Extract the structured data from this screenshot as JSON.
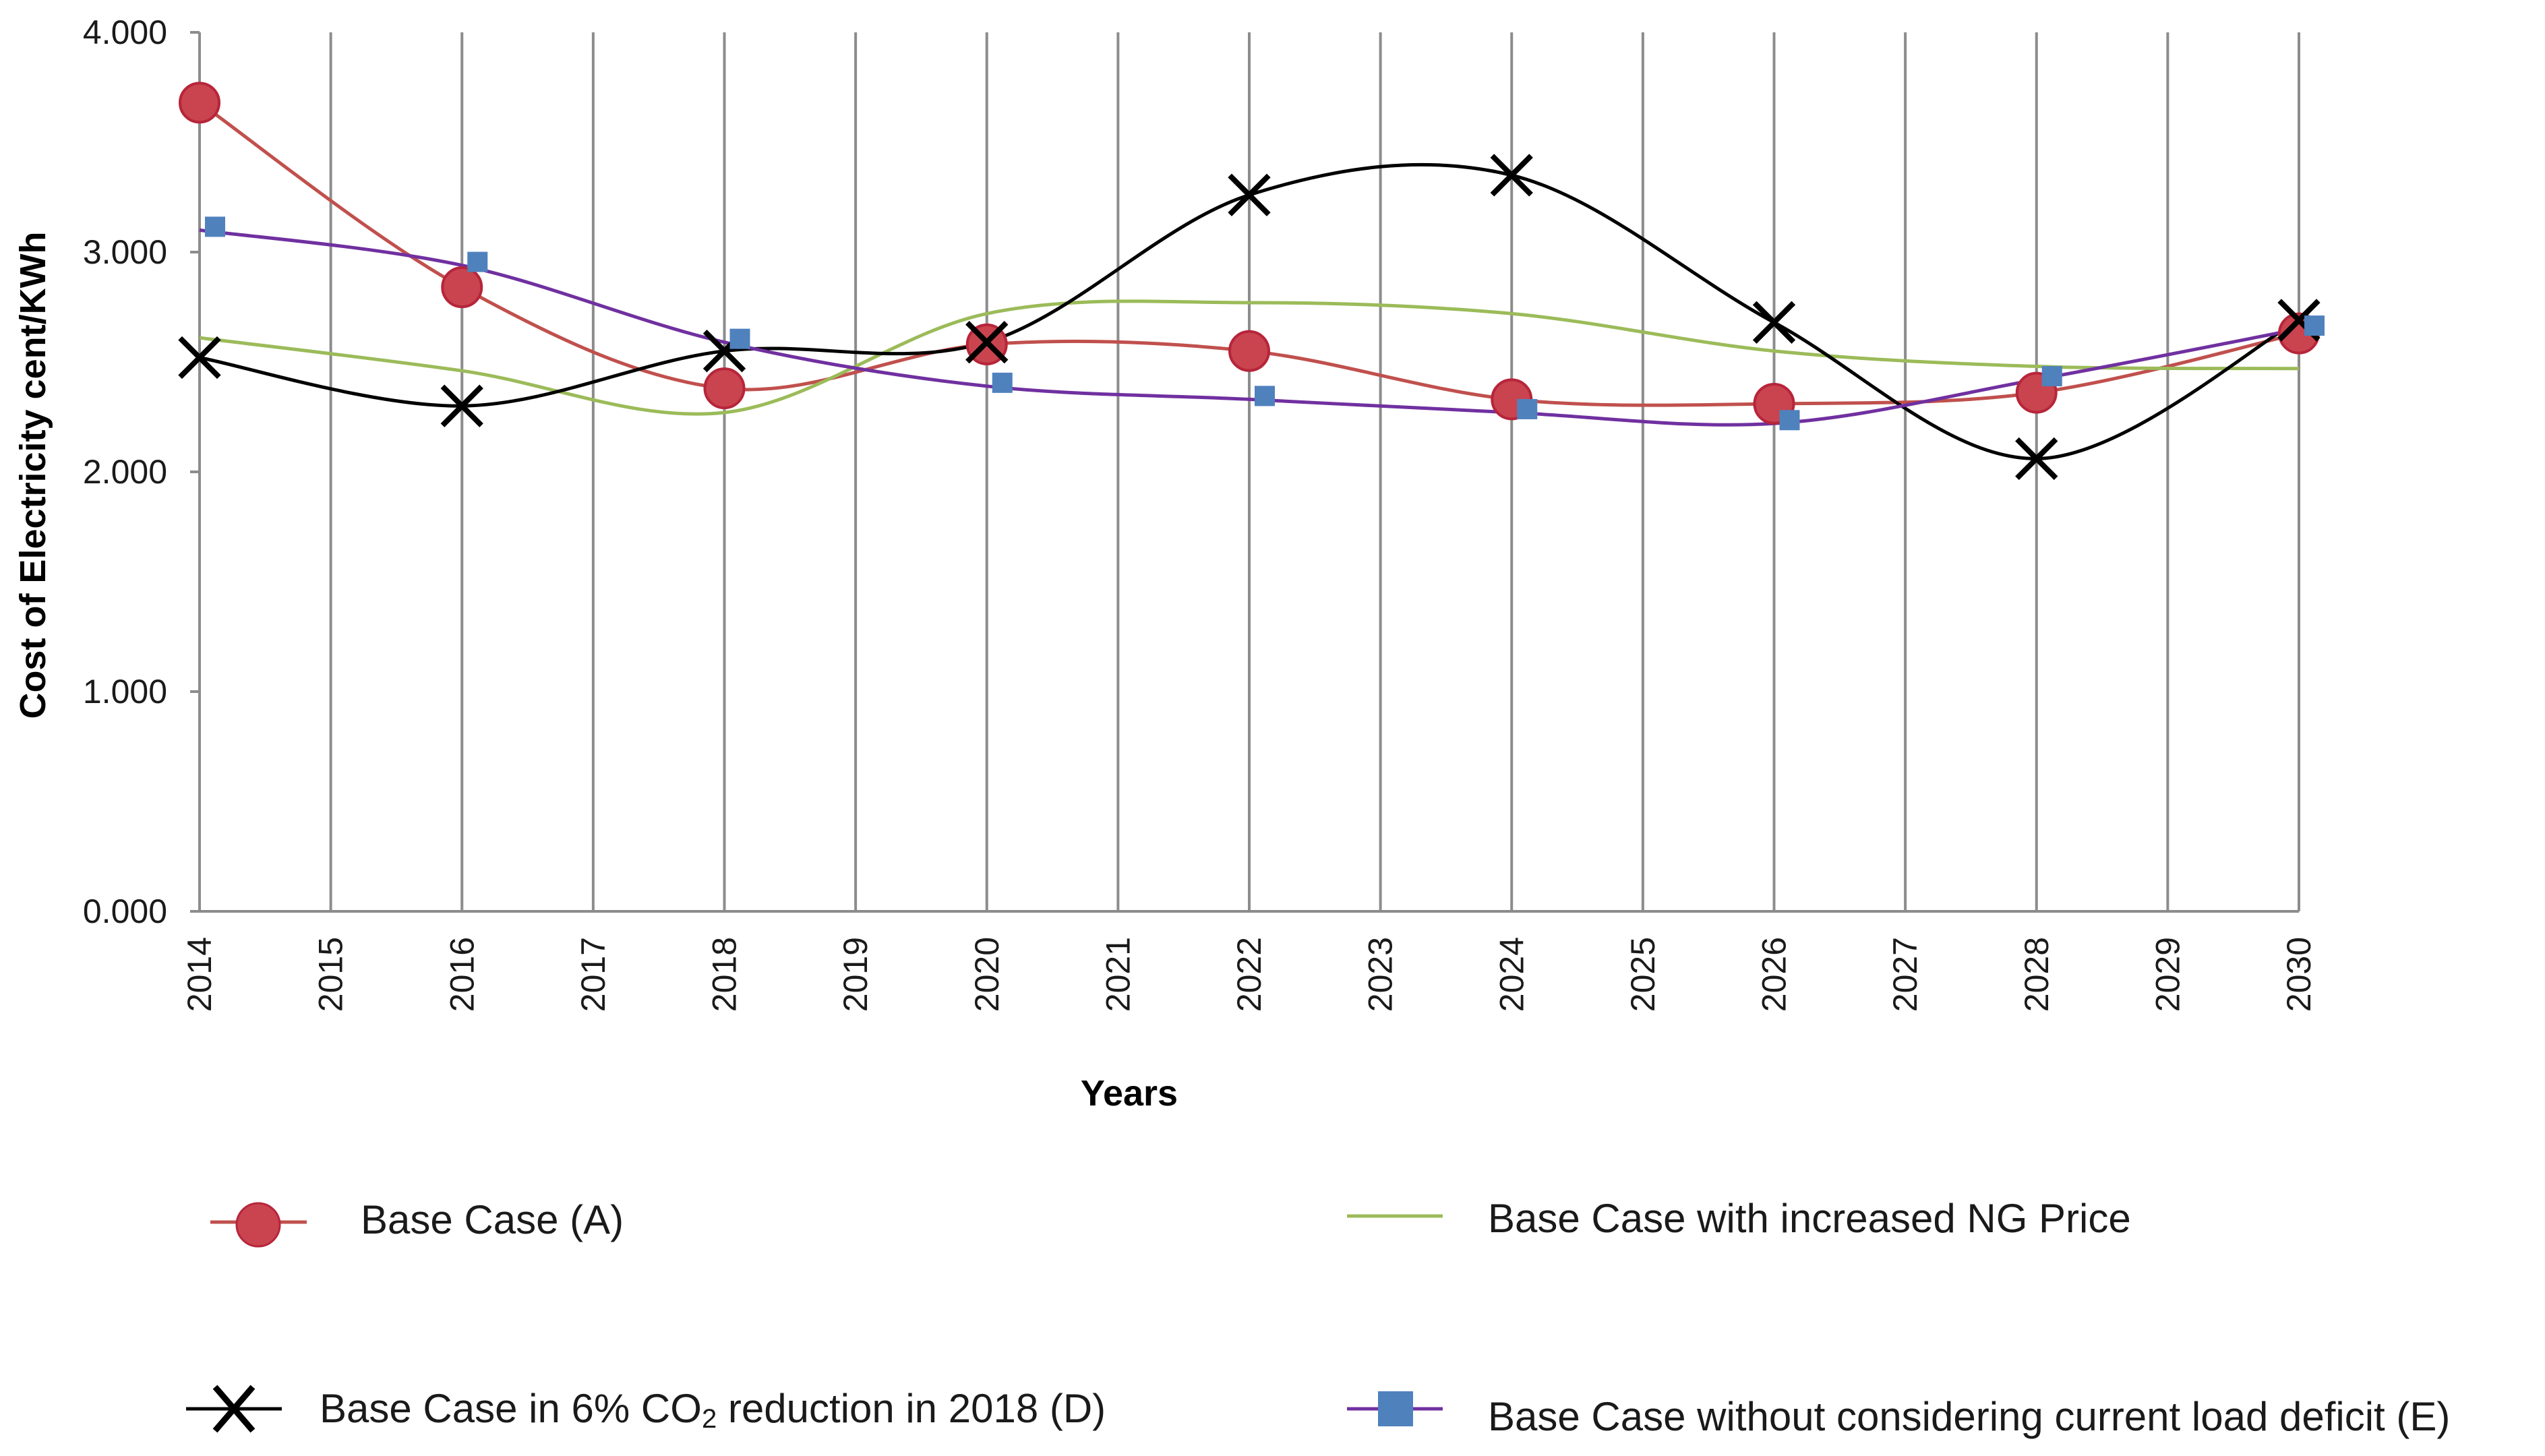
{
  "chart_data": {
    "type": "line",
    "title": "",
    "xlabel": "Years",
    "ylabel": "Cost of Electricity cent/KWh",
    "categories": [
      "2014",
      "2015",
      "2016",
      "2017",
      "2018",
      "2019",
      "2020",
      "2021",
      "2022",
      "2023",
      "2024",
      "2025",
      "2026",
      "2027",
      "2028",
      "2029",
      "2030"
    ],
    "y_tick_labels": [
      "0.000",
      "1.000",
      "2.000",
      "3.000",
      "4.000"
    ],
    "ylim": [
      0,
      4
    ],
    "grid": "vertical",
    "smooth": true,
    "series": [
      {
        "name": "Base Case (A)",
        "color": "#c0504d",
        "marker": "circle",
        "marker_color": "#b7253a",
        "x": [
          2014,
          2016,
          2018,
          2020,
          2022,
          2024,
          2026,
          2028,
          2030
        ],
        "values": [
          3.68,
          2.84,
          2.38,
          2.58,
          2.55,
          2.33,
          2.31,
          2.36,
          2.63
        ]
      },
      {
        "name": "Base Case with increased NG Price",
        "color": "#9bbb59",
        "marker": "none",
        "marker_color": "#9bbb59",
        "x": [
          2014,
          2016,
          2018,
          2020,
          2022,
          2024,
          2026,
          2028,
          2030
        ],
        "values": [
          2.61,
          2.46,
          2.27,
          2.72,
          2.77,
          2.72,
          2.55,
          2.48,
          2.47
        ]
      },
      {
        "name": "Base Case in 6% CO",
        "name_sub": "2",
        "name_tail": " reduction in 2018 (D)",
        "color": "#000000",
        "marker": "x",
        "marker_color": "#000000",
        "x": [
          2014,
          2016,
          2018,
          2020,
          2022,
          2024,
          2026,
          2028,
          2030
        ],
        "values": [
          2.52,
          2.3,
          2.55,
          2.59,
          3.26,
          3.35,
          2.68,
          2.06,
          2.69
        ]
      },
      {
        "name": "Base Case without considering current load deficit (E)",
        "color": "#7030a0",
        "marker": "square",
        "marker_color": "#4f81bd",
        "x": [
          2014,
          2016,
          2018,
          2020,
          2022,
          2024,
          2026,
          2028,
          2030
        ],
        "values": [
          3.1,
          2.94,
          2.59,
          2.39,
          2.33,
          2.27,
          2.22,
          2.42,
          2.65
        ]
      }
    ]
  }
}
